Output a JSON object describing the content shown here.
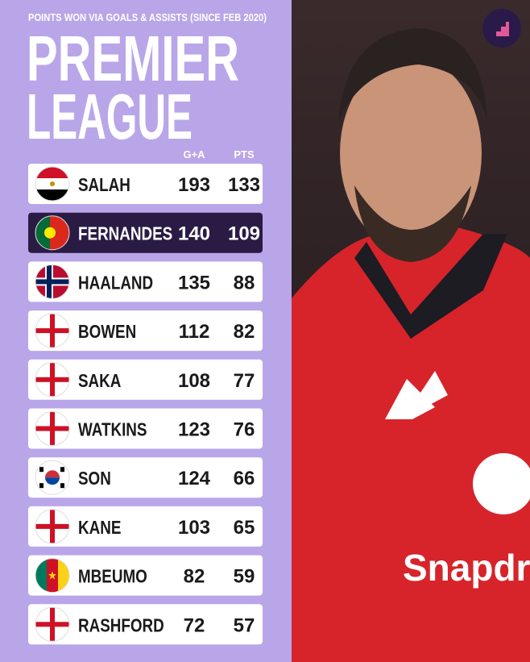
{
  "subtitle": "POINTS WON VIA GOALS & ASSISTS (SINCE FEB 2020)",
  "title": [
    "PREMIER",
    "LEAGUE"
  ],
  "table": {
    "header": [
      "G+A",
      "PTS"
    ],
    "rows": [
      [
        "SALAH",
        "193",
        "133"
      ],
      [
        "FERNANDES",
        "140",
        "109"
      ],
      [
        "HAALAND",
        "135",
        "88"
      ],
      [
        "BOWEN",
        "112",
        "82"
      ],
      [
        "SAKA",
        "108",
        "77"
      ],
      [
        "WATKINS",
        "123",
        "76"
      ],
      [
        "SON",
        "124",
        "66"
      ],
      [
        "KANE",
        "103",
        "65"
      ],
      [
        "MBEUMO",
        "82",
        "59"
      ],
      [
        "RASHFORD",
        "72",
        "57"
      ]
    ]
  },
  "photo": {
    "sponsor": "Snapdr"
  }
}
